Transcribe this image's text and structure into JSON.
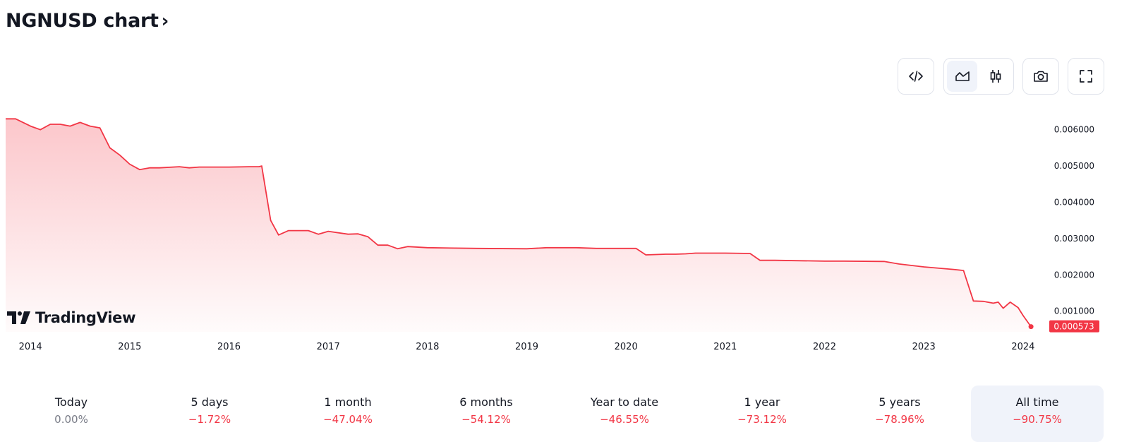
{
  "header": {
    "title": "NGNUSD chart",
    "chevron": "›"
  },
  "toolbar": {
    "embed_icon": "code-embed-icon",
    "line_chart_icon": "area-chart-icon",
    "candles_icon": "candlestick-icon",
    "snapshot_icon": "camera-icon",
    "fullscreen_icon": "fullscreen-icon"
  },
  "brand": {
    "logo_text": "TradingView"
  },
  "colors": {
    "line": "#f23645",
    "fill": "#f23645",
    "active_bg": "#f0f3fa"
  },
  "chart_data": {
    "type": "area",
    "series": [
      {
        "x": [
          2013.75,
          2013.85,
          2014.0,
          2014.1,
          2014.2,
          2014.3,
          2014.4,
          2014.5,
          2014.6,
          2014.7,
          2014.8,
          2014.9,
          2015.0,
          2015.1,
          2015.2,
          2015.3,
          2015.5,
          2015.6,
          2015.7,
          2015.8,
          2016.0,
          2016.2,
          2016.3,
          2016.33,
          2016.42,
          2016.5,
          2016.6,
          2016.8,
          2016.9,
          2017.0,
          2017.2,
          2017.3,
          2017.4,
          2017.5,
          2017.6,
          2017.7,
          2017.8,
          2018.0,
          2018.5,
          2019.0,
          2019.2,
          2019.5,
          2019.7,
          2019.9,
          2020.1,
          2020.2,
          2020.4,
          2020.5,
          2020.6,
          2020.7,
          2021.0,
          2021.25,
          2021.35,
          2021.5,
          2022.0,
          2022.2,
          2022.6,
          2022.75,
          2023.0,
          2023.3,
          2023.4,
          2023.5,
          2023.6,
          2023.7,
          2023.75,
          2023.8,
          2023.87,
          2023.95,
          2024.0,
          2024.08
        ],
        "y": [
          0.0063,
          0.0063,
          0.0061,
          0.006,
          0.00615,
          0.00615,
          0.0061,
          0.0062,
          0.0061,
          0.00605,
          0.0055,
          0.0053,
          0.00505,
          0.0049,
          0.00495,
          0.00495,
          0.00498,
          0.00495,
          0.00497,
          0.00497,
          0.00497,
          0.00498,
          0.00498,
          0.005,
          0.0035,
          0.0031,
          0.00322,
          0.00322,
          0.00312,
          0.0032,
          0.00312,
          0.00313,
          0.00305,
          0.00282,
          0.00282,
          0.00272,
          0.00278,
          0.00275,
          0.00273,
          0.00272,
          0.00275,
          0.00275,
          0.00273,
          0.00273,
          0.00273,
          0.00255,
          0.00257,
          0.00257,
          0.00258,
          0.0026,
          0.0026,
          0.00259,
          0.0024,
          0.0024,
          0.00238,
          0.00238,
          0.00237,
          0.0023,
          0.00222,
          0.00215,
          0.00212,
          0.00128,
          0.00127,
          0.00122,
          0.00125,
          0.00108,
          0.00125,
          0.0011,
          0.00088,
          0.000573
        ]
      }
    ],
    "x_ticks": [
      "2014",
      "2015",
      "2016",
      "2017",
      "2018",
      "2019",
      "2020",
      "2021",
      "2022",
      "2023",
      "2024"
    ],
    "y_ticks": [
      "0.006000",
      "0.005000",
      "0.004000",
      "0.003000",
      "0.002000",
      "0.001000"
    ],
    "xlim": [
      2013.75,
      2024.2
    ],
    "ylim": [
      0.00043,
      0.0065
    ],
    "last_value_label": "0.000573",
    "grid": false
  },
  "stats": [
    {
      "label": "Today",
      "value": "0.00%",
      "sign": "neutral"
    },
    {
      "label": "5 days",
      "value": "−1.72%",
      "sign": "neg"
    },
    {
      "label": "1 month",
      "value": "−47.04%",
      "sign": "neg"
    },
    {
      "label": "6 months",
      "value": "−54.12%",
      "sign": "neg"
    },
    {
      "label": "Year to date",
      "value": "−46.55%",
      "sign": "neg"
    },
    {
      "label": "1 year",
      "value": "−73.12%",
      "sign": "neg"
    },
    {
      "label": "5 years",
      "value": "−78.96%",
      "sign": "neg"
    },
    {
      "label": "All time",
      "value": "−90.75%",
      "sign": "neg",
      "active": true
    }
  ]
}
